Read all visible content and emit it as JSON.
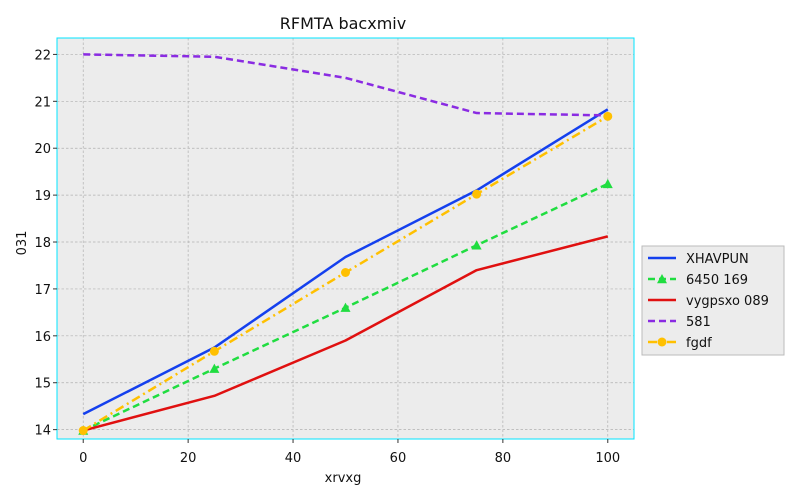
{
  "chart_data": {
    "type": "line",
    "title": "RFMTA bacxmiv",
    "xlabel": "xrvxg",
    "ylabel": "031",
    "xlim": [
      -5,
      105
    ],
    "ylim": [
      13.8,
      22.35
    ],
    "x_ticks": [
      0,
      20,
      40,
      60,
      80,
      100
    ],
    "y_ticks": [
      14,
      15,
      16,
      17,
      18,
      19,
      20,
      21,
      22
    ],
    "grid": true,
    "legend_position": "center-right-outside",
    "x": [
      0,
      25,
      50,
      75,
      100
    ],
    "series": [
      {
        "name": "XHAVPUN",
        "values": [
          14.33,
          15.75,
          17.68,
          19.1,
          20.83
        ],
        "color": "#1440ee",
        "dash": "solid",
        "marker": "none"
      },
      {
        "name": "6450 169",
        "values": [
          13.98,
          15.3,
          16.6,
          17.93,
          19.24
        ],
        "color": "#20dd40",
        "dash": "dashed",
        "marker": "triangle"
      },
      {
        "name": "vygpsxo 089",
        "values": [
          13.98,
          14.72,
          15.9,
          17.4,
          18.12
        ],
        "color": "#e01010",
        "dash": "solid",
        "marker": "none"
      },
      {
        "name": "581",
        "values": [
          22.0,
          21.95,
          21.5,
          20.75,
          20.7
        ],
        "color": "#8a2be2",
        "dash": "dashed",
        "marker": "none"
      },
      {
        "name": "fgdf",
        "values": [
          13.98,
          15.67,
          17.35,
          19.02,
          20.68
        ],
        "color": "#ffc000",
        "dash": "dashdot",
        "marker": "circle"
      }
    ]
  }
}
